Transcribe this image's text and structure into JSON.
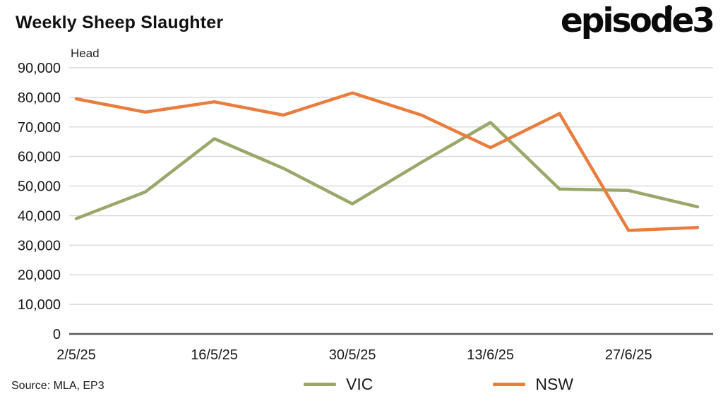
{
  "header": {
    "title": "Weekly Sheep Slaughter",
    "logo_text": "episode3"
  },
  "chart_data": {
    "type": "line",
    "title": "Weekly Sheep Slaughter",
    "xlabel": "",
    "ylabel": "Head",
    "ylim": [
      0,
      90000
    ],
    "ytick_step": 10000,
    "grid": true,
    "legend_position": "bottom",
    "x": [
      "2/5/25",
      "9/5/25",
      "16/5/25",
      "23/5/25",
      "30/5/25",
      "6/6/25",
      "13/6/25",
      "20/6/25",
      "27/6/25",
      "4/7/25"
    ],
    "xtick_labels": [
      "2/5/25",
      "16/5/25",
      "30/5/25",
      "13/6/25",
      "27/6/25"
    ],
    "series": [
      {
        "name": "VIC",
        "color": "#99a86a",
        "values": [
          39000,
          48000,
          66000,
          56000,
          44000,
          58000,
          71500,
          49000,
          48500,
          43000
        ]
      },
      {
        "name": "NSW",
        "color": "#e87d3e",
        "values": [
          79500,
          75000,
          78500,
          74000,
          81500,
          74000,
          63000,
          74500,
          35000,
          36000
        ]
      }
    ]
  },
  "footer": {
    "source": "Source: MLA, EP3"
  }
}
